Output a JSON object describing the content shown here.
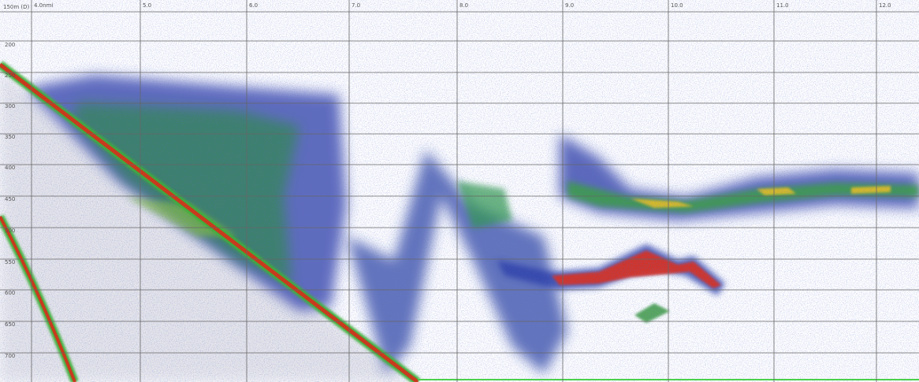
{
  "header": {
    "range": "150m (D)"
  },
  "distance_labels": [
    "4.0nmi",
    "5.0",
    "6.0",
    "7.0",
    "8.0",
    "9.0",
    "10.0",
    "11.0",
    "12.0"
  ],
  "depth_labels": [
    "200",
    "250",
    "300",
    "350",
    "400",
    "450",
    "500",
    "550",
    "600",
    "650",
    "700"
  ]
}
